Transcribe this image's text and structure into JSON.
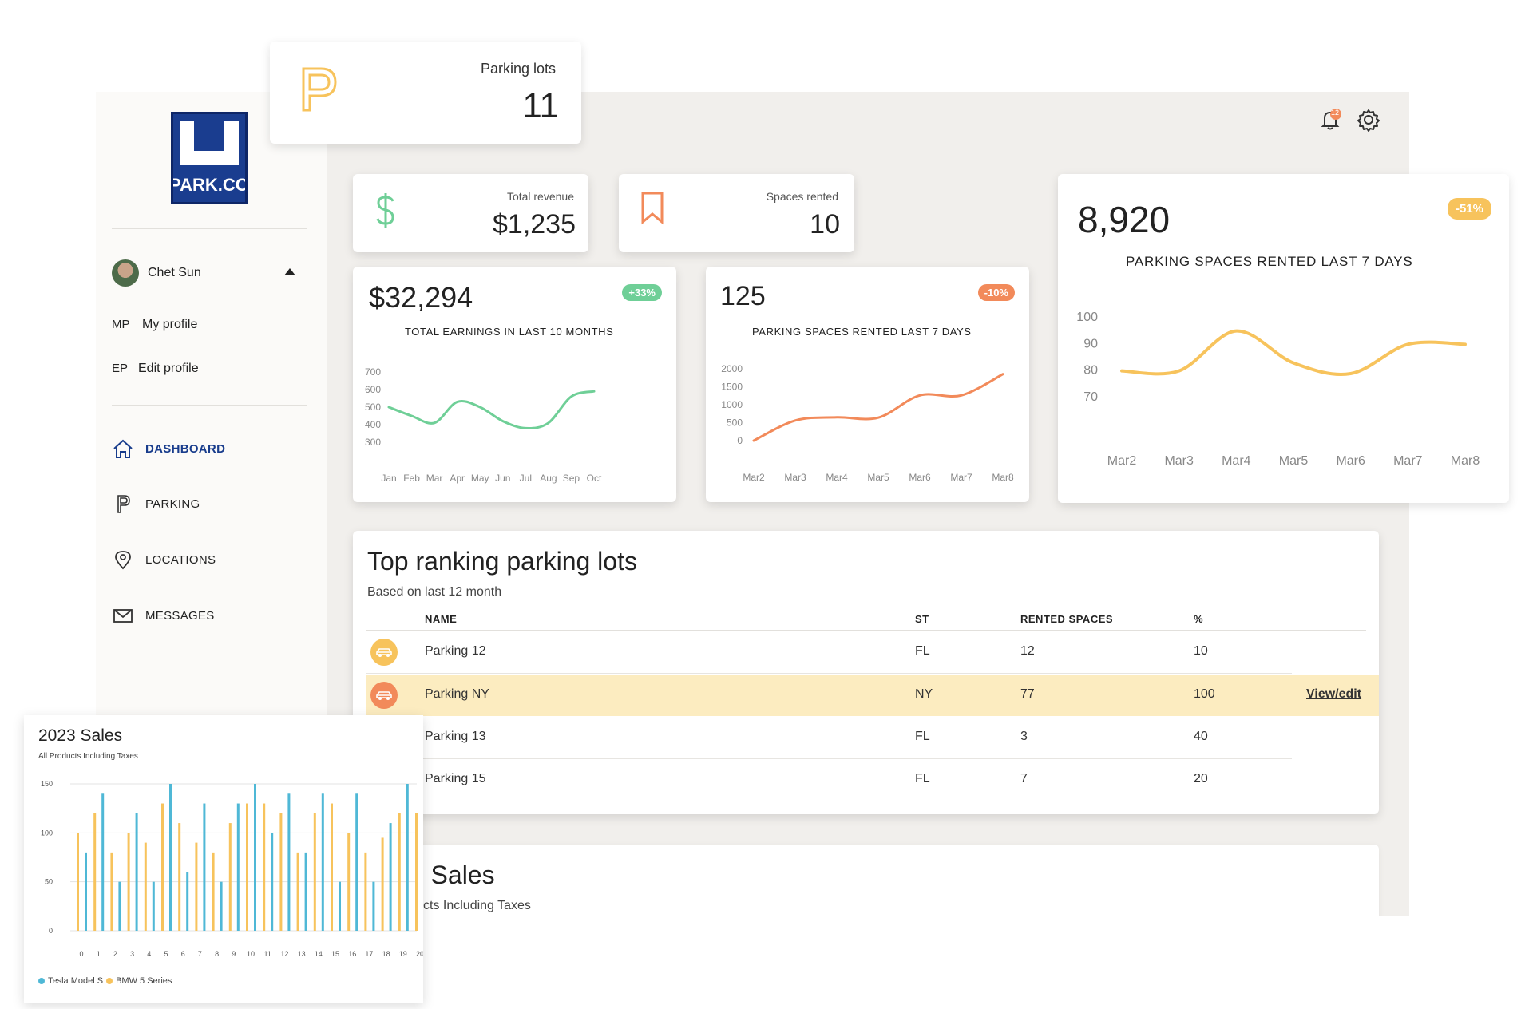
{
  "colors": {
    "accent_blue": "#183c8c",
    "green": "#6fcf97",
    "orange": "#f28a5a",
    "yellow": "#f7c35c",
    "teal": "#4fb8d6",
    "highlight_row": "#fcecc0"
  },
  "parking_lots_card": {
    "label": "Parking lots",
    "value": "11",
    "icon": "parking-p-icon"
  },
  "logo": {
    "top": "U",
    "text": "PARK.CO"
  },
  "user": {
    "name": "Chet Sun",
    "initials_profile": "MP",
    "my_profile": "My profile",
    "initials_edit": "EP",
    "edit_profile": "Edit profile"
  },
  "nav": [
    {
      "label": "DASHBOARD",
      "icon": "home-icon",
      "active": true
    },
    {
      "label": "PARKING",
      "icon": "parking-icon"
    },
    {
      "label": "LOCATIONS",
      "icon": "location-pin-icon"
    },
    {
      "label": "MESSAGES",
      "icon": "mail-icon"
    }
  ],
  "header": {
    "notification_count": "12",
    "icons": [
      "bell-icon",
      "gear-icon"
    ]
  },
  "stats": {
    "revenue": {
      "label": "Total revenue",
      "value": "$1,235",
      "icon": "dollar-icon"
    },
    "spaces": {
      "label": "Spaces rented",
      "value": "10",
      "icon": "bookmark-icon"
    }
  },
  "earnings_card": {
    "value": "$32,294",
    "badge": "+33%",
    "title": "TOTAL EARNINGS IN LAST 10 MONTHS"
  },
  "rented_card": {
    "value": "125",
    "badge": "-10%",
    "title": "PARKING SPACES RENTED LAST 7 DAYS"
  },
  "big_card": {
    "value": "8,920",
    "badge": "-51%",
    "title": "PARKING SPACES RENTED LAST 7 DAYS"
  },
  "chart_data": [
    {
      "type": "line",
      "title": "TOTAL EARNINGS IN LAST 10 MONTHS",
      "x": [
        "Jan",
        "Feb",
        "Mar",
        "Apr",
        "May",
        "Jun",
        "Jul",
        "Aug",
        "Sep",
        "Oct"
      ],
      "y_ticks": [
        700,
        600,
        500,
        400,
        300
      ],
      "ylim": [
        300,
        700
      ],
      "series": [
        {
          "values": [
            500,
            450,
            410,
            530,
            500,
            420,
            380,
            410,
            560,
            590
          ]
        }
      ]
    },
    {
      "type": "line",
      "title": "PARKING SPACES RENTED LAST 7 DAYS",
      "x": [
        "Mar2",
        "Mar3",
        "Mar4",
        "Mar5",
        "Mar6",
        "Mar7",
        "Mar8"
      ],
      "y_ticks": [
        2000,
        1500,
        1000,
        500,
        0
      ],
      "ylim": [
        0,
        2000
      ],
      "series": [
        {
          "values": [
            0,
            560,
            650,
            640,
            1260,
            1260,
            1850
          ]
        }
      ]
    },
    {
      "type": "line",
      "title": "PARKING SPACES RENTED LAST 7 DAYS",
      "x": [
        "Mar2",
        "Mar3",
        "Mar4",
        "Mar5",
        "Mar6",
        "Mar7",
        "Mar8"
      ],
      "y_ticks": [
        100,
        90,
        80,
        70
      ],
      "ylim": [
        70,
        100
      ],
      "series": [
        {
          "values": [
            80,
            80,
            95,
            83,
            79,
            90,
            90
          ]
        }
      ]
    },
    {
      "type": "bar",
      "title": "2023 Sales",
      "subtitle": "All Products Including Taxes",
      "categories": [
        "0",
        "1",
        "2",
        "3",
        "4",
        "5",
        "6",
        "7",
        "8",
        "9",
        "10",
        "11",
        "12",
        "13",
        "14",
        "15",
        "16",
        "17",
        "18",
        "19",
        "20"
      ],
      "y_ticks": [
        150,
        100,
        50,
        0
      ],
      "ylim": [
        0,
        150
      ],
      "series": [
        {
          "name": "BMW 5 Series",
          "values": [
            100,
            120,
            80,
            100,
            90,
            130,
            110,
            90,
            80,
            110,
            130,
            130,
            120,
            80,
            120,
            130,
            100,
            80,
            95,
            120,
            120
          ]
        },
        {
          "name": "Tesla Model S",
          "values": [
            80,
            140,
            50,
            120,
            50,
            150,
            60,
            130,
            50,
            130,
            150,
            100,
            140,
            80,
            140,
            50,
            140,
            50,
            110,
            150,
            0
          ]
        }
      ],
      "legend": "bottom-left"
    }
  ],
  "table": {
    "title": "Top ranking parking lots",
    "subtitle": "Based on last 12 month",
    "headers": {
      "name": "NAME",
      "st": "ST",
      "rented": "RENTED SPACES",
      "pct": "%"
    },
    "rows": [
      {
        "name": "Parking 12",
        "st": "FL",
        "rented": "12",
        "pct": "10"
      },
      {
        "name": "Parking NY",
        "st": "NY",
        "rented": "77",
        "pct": "100",
        "action": "View/edit"
      },
      {
        "name": "Parking 13",
        "st": "FL",
        "rented": "3",
        "pct": "40"
      },
      {
        "name": "Parking 15",
        "st": "FL",
        "rented": "7",
        "pct": "20"
      }
    ]
  },
  "sales_behind": {
    "title": ") Sales",
    "subtitle": "cts Including Taxes"
  }
}
